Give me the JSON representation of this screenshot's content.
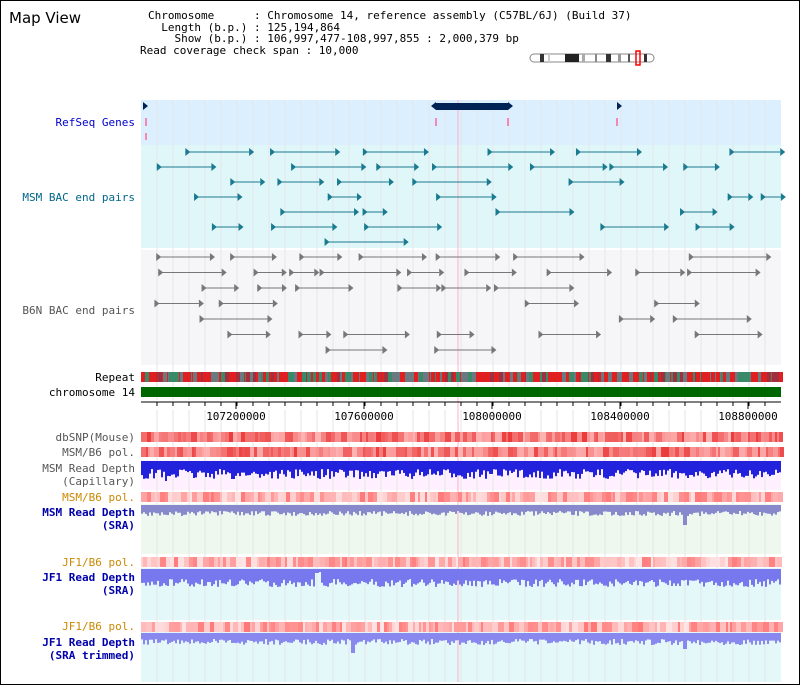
{
  "title": "Map View",
  "header": {
    "chromosome": "Chromosome      : Chromosome 14, reference assembly (C57BL/6J) (Build 37)",
    "length": "  Length (b.p.) : 125,194,864",
    "show": "    Show (b.p.) : 106,997,477-108,997,855 : 2,000,379 bp",
    "coverage": "Read coverage check span : 10,000"
  },
  "tracks": {
    "refseq": "RefSeq Genes",
    "msm_bac": "MSM BAC end pairs",
    "b6n_bac": "B6N BAC end pairs",
    "repeat": "Repeat",
    "chromosome": "chromosome 14",
    "dbsnp": "dbSNP(Mouse)",
    "msm_b6_pol_1": "MSM/B6 pol.",
    "msm_read_depth_cap_1": "MSM Read Depth",
    "msm_read_depth_cap_2": "(Capillary)",
    "msm_b6_pol_2": "MSM/B6 pol.",
    "msm_read_depth_sra_1": "MSM Read Depth",
    "msm_read_depth_sra_2": "(SRA)",
    "jf1_b6_pol": "JF1/B6 pol.",
    "jf1_read_depth_sra_1": "JF1 Read Depth",
    "jf1_read_depth_sra_2": "(SRA)",
    "jf1_b6_pol_2": "JF1/B6 pol.",
    "jf1_read_depth_trim_1": "JF1 Read Depth",
    "jf1_read_depth_trim_2": "(SRA trimmed)"
  },
  "axis": {
    "ticks": [
      "107200000",
      "107600000",
      "108000000",
      "108400000",
      "108800000"
    ]
  },
  "colors": {
    "refseq_label": "#0000cc",
    "msm_label": "#006688",
    "b6n_label": "#555555",
    "pol_orange": "#cc8800",
    "sra_label": "#0000aa",
    "refseq_bg": "#dcefff",
    "msm_bg": "#e0f7f9",
    "b6n_bg": "#f4f4f8",
    "chrom_green": "#006600",
    "gene_navy": "#002255"
  }
}
